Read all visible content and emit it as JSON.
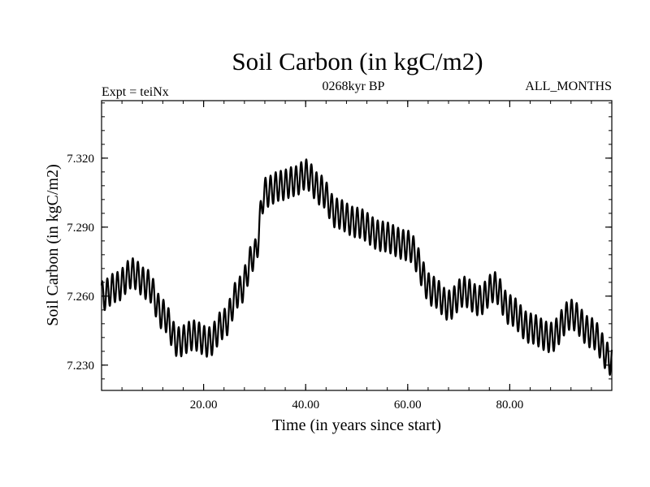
{
  "chart_data": {
    "type": "line",
    "title": "Soil Carbon (in kgC/m2)",
    "header_left": "Expt = teiNx",
    "header_center": "0268kyr BP",
    "header_right": "ALL_MONTHS",
    "xlabel": "Time (in years since start)",
    "ylabel": "Soil Carbon (in kgC/m2)",
    "xlim": [
      0,
      100
    ],
    "ylim": [
      7.219,
      7.345
    ],
    "x_ticks": [
      20,
      40,
      60,
      80
    ],
    "x_tick_labels": [
      "20.00",
      "40.00",
      "60.00",
      "80.00"
    ],
    "y_ticks": [
      7.23,
      7.26,
      7.29,
      7.32
    ],
    "y_tick_labels": [
      "7.230",
      "7.260",
      "7.290",
      "7.320"
    ],
    "grid": false,
    "series": [
      {
        "color": "#000000",
        "oscillation_amplitude": 0.0065,
        "oscillation_period_years": 1.0,
        "mean_curve": {
          "x": [
            0,
            3,
            6,
            9,
            12,
            15,
            18,
            21,
            24,
            27,
            30,
            32,
            35,
            38,
            40,
            43,
            46,
            50,
            55,
            60,
            65,
            68,
            71,
            74,
            77,
            80,
            84,
            88,
            92,
            96,
            100
          ],
          "y": [
            7.26,
            7.264,
            7.27,
            7.265,
            7.252,
            7.24,
            7.243,
            7.24,
            7.248,
            7.262,
            7.278,
            7.305,
            7.308,
            7.31,
            7.313,
            7.306,
            7.296,
            7.292,
            7.286,
            7.282,
            7.262,
            7.256,
            7.262,
            7.258,
            7.264,
            7.254,
            7.246,
            7.242,
            7.252,
            7.244,
            7.232
          ]
        }
      }
    ]
  }
}
